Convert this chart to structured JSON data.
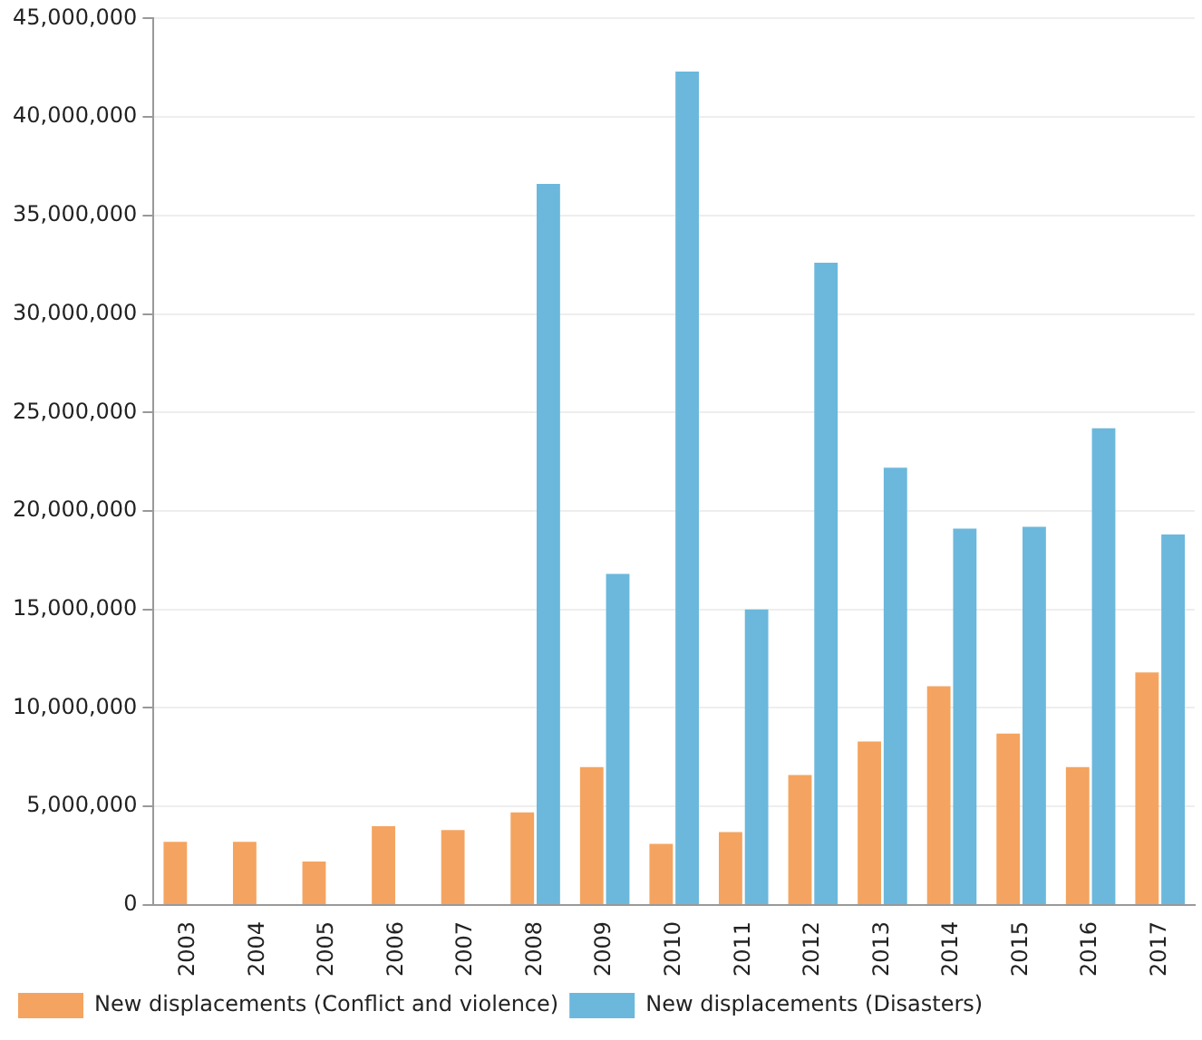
{
  "chart_data": {
    "type": "bar",
    "categories": [
      "2003",
      "2004",
      "2005",
      "2006",
      "2007",
      "2008",
      "2009",
      "2010",
      "2011",
      "2012",
      "2013",
      "2014",
      "2015",
      "2016",
      "2017"
    ],
    "series": [
      {
        "name": "New displacements (Conflict and violence)",
        "color": "#f4a460",
        "values": [
          3200000,
          3200000,
          2200000,
          4000000,
          3800000,
          4700000,
          7000000,
          3100000,
          3700000,
          6600000,
          8300000,
          11100000,
          8700000,
          7000000,
          11800000
        ]
      },
      {
        "name": "New displacements (Disasters)",
        "color": "#6bb8dc",
        "values": [
          null,
          null,
          null,
          null,
          null,
          36600000,
          16800000,
          42300000,
          15000000,
          32600000,
          22200000,
          19100000,
          19200000,
          24200000,
          18800000
        ]
      }
    ],
    "ylim": [
      0,
      45000000
    ],
    "yticks": [
      0,
      {
        "value": 5000000,
        "label": "5,000,000"
      },
      {
        "value": 10000000,
        "label": "10,000,000"
      },
      {
        "value": 15000000,
        "label": "15,000,000"
      },
      {
        "value": 20000000,
        "label": "20,000,000"
      },
      {
        "value": 25000000,
        "label": "25,000,000"
      },
      {
        "value": 30000000,
        "label": "30,000,000"
      },
      {
        "value": 35000000,
        "label": "35,000,000"
      },
      {
        "value": 40000000,
        "label": "40,000,000"
      },
      {
        "value": 45000000,
        "label": "45,000,000"
      }
    ],
    "grid": "y",
    "legend": "bottom left"
  }
}
